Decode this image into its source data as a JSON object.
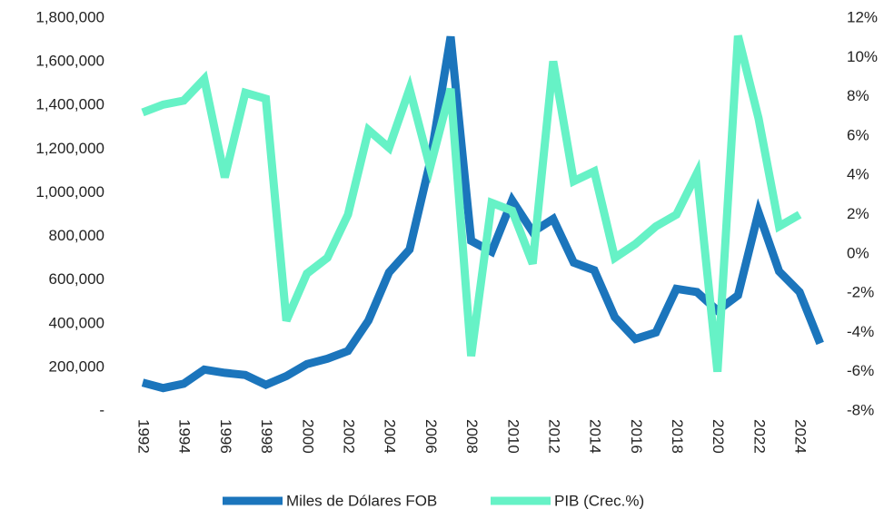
{
  "chart_data": {
    "type": "line",
    "categories": [
      "1992",
      null,
      "1994",
      null,
      "1996",
      null,
      "1998",
      null,
      "2000",
      null,
      "2002",
      null,
      "2004",
      null,
      "2006",
      null,
      "2008",
      null,
      "2010",
      null,
      "2012",
      null,
      "2014",
      null,
      "2016",
      null,
      "2018",
      null,
      "2020",
      null,
      "2022",
      null,
      "2024",
      null
    ],
    "series": [
      {
        "name": "Miles de Dólares FOB",
        "color": "#1b75bc",
        "axis": "y",
        "values": [
          130000,
          105000,
          125000,
          190000,
          175000,
          165000,
          120000,
          160000,
          215000,
          240000,
          275000,
          415000,
          635000,
          740000,
          1140000,
          1715000,
          780000,
          730000,
          965000,
          820000,
          880000,
          680000,
          645000,
          430000,
          330000,
          360000,
          560000,
          545000,
          460000,
          530000,
          910000,
          640000,
          545000,
          310000
        ]
      },
      {
        "name": "PIB (Crec.%)",
        "color": "#66f2c6",
        "axis": "y2",
        "values": [
          7.2,
          7.6,
          7.8,
          8.9,
          3.9,
          8.2,
          7.9,
          -3.4,
          -1.0,
          -0.2,
          2.0,
          6.3,
          5.4,
          8.4,
          4.4,
          8.4,
          -5.2,
          2.6,
          2.2,
          -0.5,
          9.8,
          3.7,
          4.2,
          -0.2,
          0.5,
          1.4,
          2.0,
          4.1,
          -6.0,
          11.1,
          6.9,
          1.4,
          2.0,
          null
        ]
      }
    ],
    "ylim": [
      0,
      1800000
    ],
    "yticks": [
      {
        "value": 0,
        "label": "-"
      },
      {
        "value": 200000,
        "label": "200,000"
      },
      {
        "value": 400000,
        "label": "400,000"
      },
      {
        "value": 600000,
        "label": "600,000"
      },
      {
        "value": 800000,
        "label": "800,000"
      },
      {
        "value": 1000000,
        "label": "1,000,000"
      },
      {
        "value": 1200000,
        "label": "1,200,000"
      },
      {
        "value": 1400000,
        "label": "1,400,000"
      },
      {
        "value": 1600000,
        "label": "1,600,000"
      },
      {
        "value": 1800000,
        "label": "1,800,000"
      }
    ],
    "y2lim": [
      -8,
      12
    ],
    "y2ticks": [
      {
        "value": -8,
        "label": "-8%"
      },
      {
        "value": -6,
        "label": "-6%"
      },
      {
        "value": -4,
        "label": "-4%"
      },
      {
        "value": -2,
        "label": "-2%"
      },
      {
        "value": 0,
        "label": "0%"
      },
      {
        "value": 2,
        "label": "2%"
      },
      {
        "value": 4,
        "label": "4%"
      },
      {
        "value": 6,
        "label": "6%"
      },
      {
        "value": 8,
        "label": "8%"
      },
      {
        "value": 10,
        "label": "10%"
      },
      {
        "value": 12,
        "label": "12%"
      }
    ],
    "legend": "bottom"
  }
}
